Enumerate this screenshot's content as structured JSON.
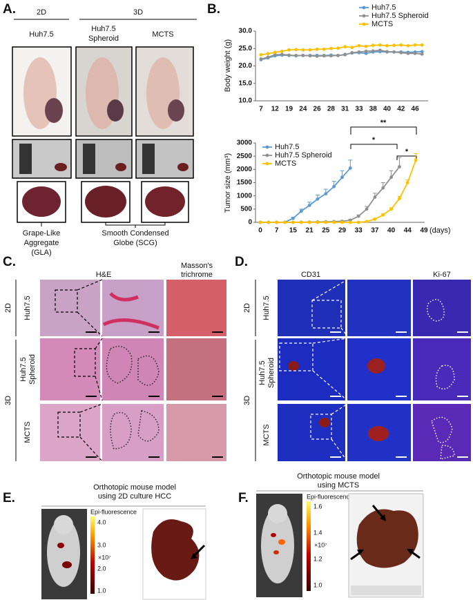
{
  "panel_a": {
    "label": "A.",
    "groups": [
      "2D",
      "3D"
    ],
    "columns": [
      [
        "Huh7.5"
      ],
      [
        "Huh7.5",
        "Spheroid"
      ],
      [
        "MCTS"
      ]
    ],
    "captions": [
      [
        "Grape-Like",
        "Aggregate",
        "(GLA)"
      ],
      [
        "Smooth Condensed",
        "Globe (SCG)"
      ]
    ]
  },
  "panel_b": {
    "label": "B."
  },
  "chart_data": [
    {
      "type": "line",
      "y_label": "Body weight  (g)",
      "legend": "upper right",
      "categories": [
        "7",
        null,
        "12",
        null,
        "19",
        null,
        "24",
        null,
        "26",
        null,
        "28",
        null,
        "31",
        null,
        "33",
        null,
        "38",
        null,
        "40",
        null,
        "42",
        null,
        "46",
        null
      ],
      "series": [
        {
          "name": "Huh7.5",
          "color": "#5b9bd5",
          "values": [
            21.8,
            22.3,
            22.9,
            23.1,
            23.0,
            22.9,
            23.0,
            23.0,
            23.0,
            23.0,
            23.1,
            23.0,
            23.3,
            23.7,
            23.8,
            23.6,
            24.0,
            24.1,
            24.0,
            24.0,
            24.0,
            23.9,
            24.0,
            24.1
          ]
        },
        {
          "name": "Huh7.5 Spheroid",
          "color": "#909090",
          "values": [
            22.0,
            22.5,
            23.2,
            23.3,
            23.1,
            23.0,
            23.0,
            22.9,
            22.8,
            22.9,
            22.9,
            23.0,
            23.2,
            23.8,
            24.0,
            24.2,
            24.3,
            24.5,
            24.1,
            24.0,
            23.8,
            23.6,
            23.6,
            23.4
          ]
        },
        {
          "name": "MCTS",
          "color": "#ffc000",
          "values": [
            23.2,
            23.5,
            23.9,
            24.2,
            24.6,
            24.7,
            24.6,
            24.6,
            24.8,
            24.8,
            25.0,
            25.1,
            25.5,
            25.3,
            25.8,
            25.6,
            25.9,
            26.0,
            25.8,
            25.9,
            26.0,
            25.8,
            26.0,
            26.0
          ]
        }
      ],
      "ylim": [
        10,
        30
      ],
      "yticks": [
        {
          "value": 10,
          "label": "10.0"
        },
        {
          "value": 15,
          "label": "15.0"
        },
        {
          "value": 20,
          "label": "20.0"
        },
        {
          "value": 25,
          "label": "25.0"
        },
        {
          "value": 30,
          "label": "30.0"
        }
      ]
    },
    {
      "type": "line",
      "y_label": "Tumor size (mm³)",
      "x_label": "(days)",
      "legend": "upper left",
      "categories": [
        "0",
        null,
        "7",
        null,
        "15",
        null,
        "21",
        null,
        "25",
        null,
        "29",
        null,
        "33",
        null,
        "37",
        null,
        "40",
        null,
        "44",
        null,
        "49",
        null
      ],
      "series": [
        {
          "name": "Huh7.5",
          "color": "#5b9bd5",
          "values": [
            0,
            0,
            0,
            5,
            150,
            420,
            640,
            880,
            1080,
            1350,
            1700,
            2050,
            null,
            null,
            null,
            null,
            null,
            null,
            null,
            null,
            null,
            null
          ],
          "errors": [
            0,
            0,
            0,
            10,
            40,
            80,
            120,
            150,
            170,
            200,
            250,
            300,
            null,
            null,
            null,
            null,
            null,
            null,
            null,
            null,
            null,
            null
          ]
        },
        {
          "name": "Huh7.5 Spheroid",
          "color": "#909090",
          "values": [
            0,
            0,
            0,
            0,
            0,
            5,
            10,
            15,
            20,
            30,
            40,
            80,
            230,
            500,
            950,
            1300,
            1700,
            2100,
            null,
            null,
            null,
            null
          ],
          "errors": [
            0,
            0,
            0,
            0,
            0,
            5,
            5,
            10,
            10,
            10,
            15,
            30,
            50,
            100,
            150,
            200,
            250,
            350,
            null,
            null,
            null,
            null
          ]
        },
        {
          "name": "MCTS",
          "color": "#ffc000",
          "values": [
            0,
            0,
            0,
            0,
            0,
            0,
            0,
            0,
            0,
            0,
            0,
            0,
            0,
            30,
            120,
            280,
            500,
            900,
            1500,
            2350,
            null,
            null
          ],
          "errors": [
            0,
            0,
            0,
            0,
            0,
            0,
            0,
            0,
            0,
            0,
            0,
            0,
            0,
            10,
            20,
            40,
            50,
            80,
            100,
            250,
            null,
            null
          ]
        }
      ],
      "ylim": [
        0,
        3000
      ],
      "yticks": [
        0,
        500,
        1000,
        1500,
        2000,
        2500,
        3000
      ],
      "annotations": [
        "**",
        "*",
        "*"
      ]
    }
  ],
  "panel_c": {
    "label": "C.",
    "headers": [
      [
        "H&E"
      ],
      [
        "Masson's",
        "trichrome"
      ]
    ],
    "groups": [
      "2D",
      "3D"
    ],
    "rows": [
      [
        "Huh7.5"
      ],
      [
        "Huh7.5",
        "Spheroid"
      ],
      [
        "MCTS"
      ]
    ]
  },
  "panel_d": {
    "label": "D.",
    "headers": [
      [
        "CD31"
      ],
      [
        "Ki-67"
      ]
    ],
    "groups": [
      "2D",
      "3D"
    ],
    "rows": [
      [
        "Huh7.5"
      ],
      [
        "Huh7.5",
        "Spheroid"
      ],
      [
        "MCTS"
      ]
    ]
  },
  "panel_e": {
    "label": "E.",
    "title": [
      "Orthotopic mouse model",
      "using 2D culture HCC"
    ],
    "colorbar": {
      "title": "Epi-fluorescence",
      "ticks": [
        "4.0",
        "3.0",
        "2.0",
        "1.0"
      ],
      "unit": "×10⁷"
    }
  },
  "panel_f": {
    "label": "F.",
    "title": [
      "Orthotopic mouse model",
      "using MCTS"
    ],
    "colorbar": {
      "title": "Epi-fluorescence",
      "ticks": [
        "1.6",
        "1.4",
        "1.2",
        "1.0"
      ],
      "unit": "×10⁷"
    }
  }
}
